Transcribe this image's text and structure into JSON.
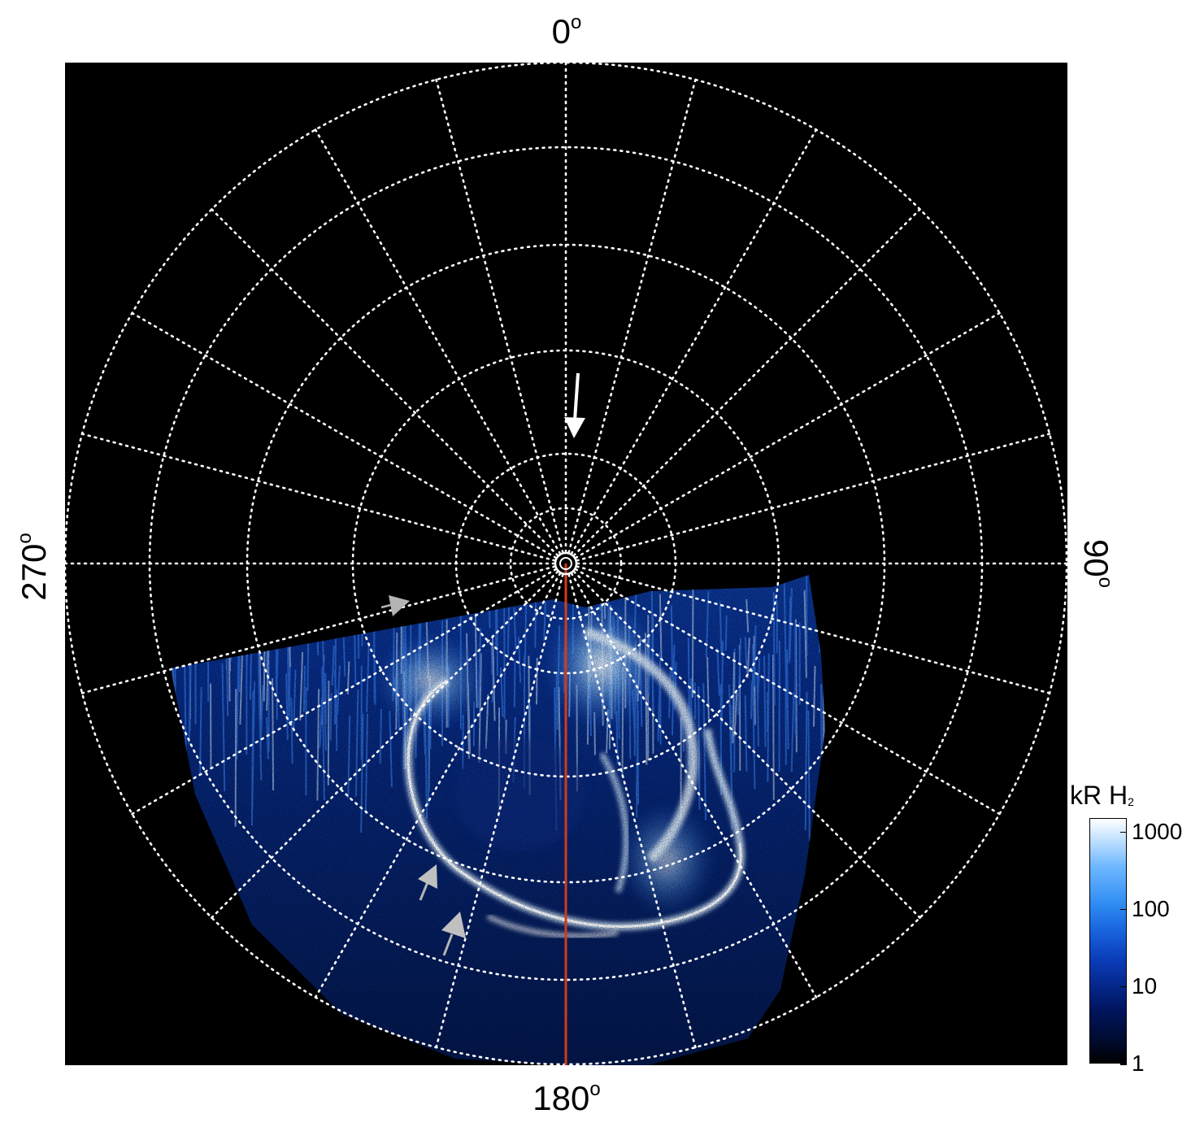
{
  "directions": {
    "top": "0",
    "right": "90",
    "bottom": "180",
    "left": "270",
    "degree_symbol": "o"
  },
  "colorbar": {
    "title_main": "kR H",
    "title_sub": "2",
    "ticks": [
      "1000",
      "100",
      "10",
      "1"
    ],
    "tick_values": [
      1000,
      100,
      10,
      1
    ],
    "range": [
      1,
      1500
    ],
    "scale": "log",
    "colors": [
      "#000000",
      "#001560",
      "#1a66e0",
      "#6bb6ff",
      "#ffffff"
    ]
  },
  "plot": {
    "background": "#000000",
    "grid_color": "#ffffff",
    "meridian_color": "#d23a1a",
    "marker_arrow_color": "#ffffff",
    "secondary_arrow_color": "#b4b4b4",
    "longitude_grid_step_deg": 15,
    "latitude_ring_count": 5
  }
}
